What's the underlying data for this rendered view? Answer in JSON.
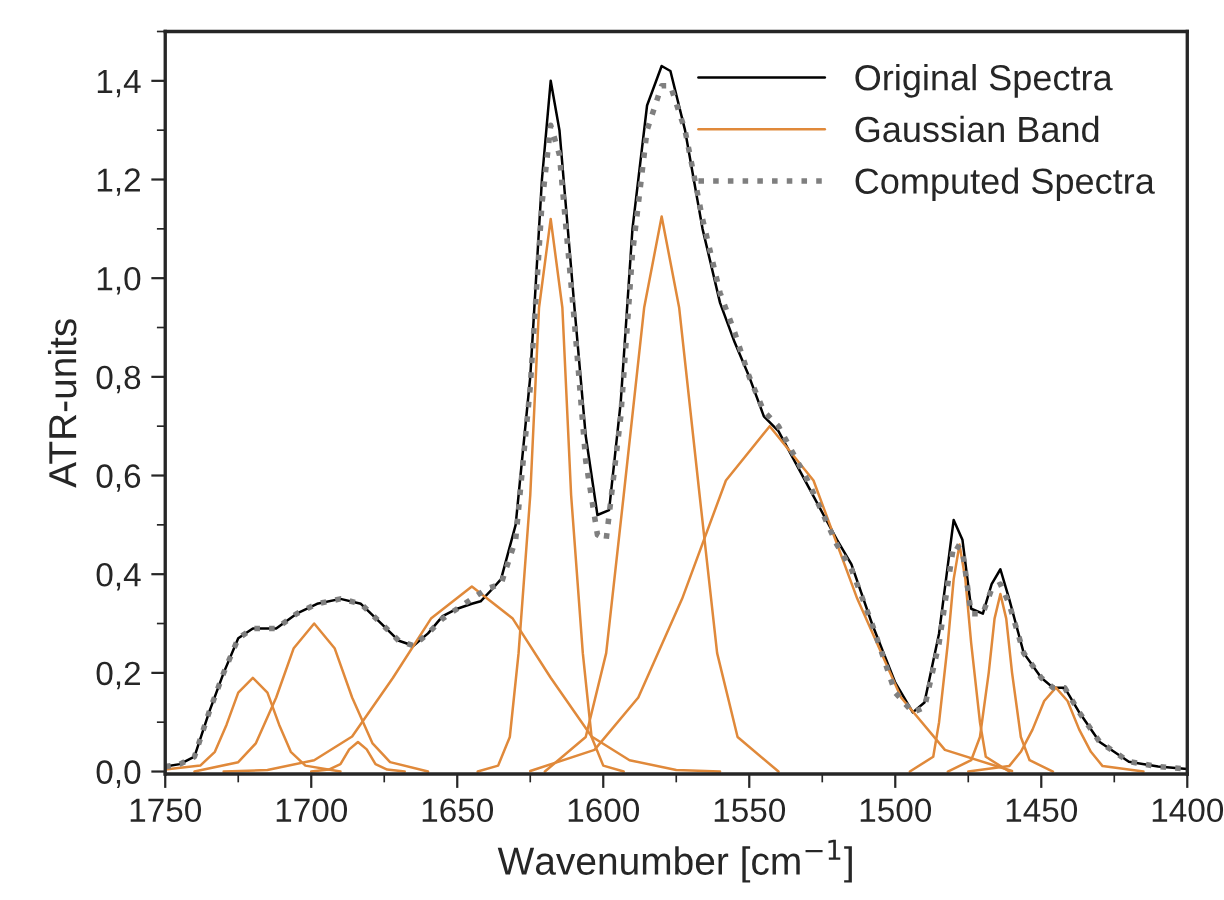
{
  "chart_data": {
    "type": "line",
    "xlabel": "Wavenumber [cm$^{−1}$]",
    "ylabel": "ATR-units",
    "xlim": [
      1750,
      1400
    ],
    "xticks": [
      1750,
      1700,
      1650,
      1600,
      1550,
      1500,
      1450,
      1400
    ],
    "ylim": [
      -0.005,
      1.5
    ],
    "yticks": [
      {
        "value": 0,
        "label": "0,0"
      },
      {
        "value": 0.2,
        "label": "0,2"
      },
      {
        "value": 0.4,
        "label": "0,4"
      },
      {
        "value": 0.6,
        "label": "0,6"
      },
      {
        "value": 0.8,
        "label": "0,8"
      },
      {
        "value": 1.0,
        "label": "1,0"
      },
      {
        "value": 1.2,
        "label": "1,2"
      },
      {
        "value": 1.4,
        "label": "1,4"
      }
    ],
    "grid": false,
    "legend": "top right",
    "series": [
      {
        "name": "Original Spectra",
        "color": "#000000",
        "line_style": "solid",
        "x": [
          1750,
          1745,
          1740,
          1735,
          1730,
          1725,
          1720,
          1712,
          1705,
          1698,
          1690,
          1683,
          1676,
          1670,
          1665,
          1660,
          1655,
          1650,
          1645,
          1642,
          1638,
          1635,
          1630,
          1625,
          1621,
          1618,
          1615,
          1610,
          1606,
          1602,
          1598,
          1594,
          1590,
          1585,
          1580,
          1577,
          1572,
          1566,
          1560,
          1555,
          1550,
          1545,
          1540,
          1530,
          1520,
          1515,
          1508,
          1500,
          1494,
          1490,
          1485,
          1480,
          1477,
          1474,
          1470,
          1467,
          1464,
          1461,
          1456,
          1450,
          1446,
          1442,
          1437,
          1430,
          1420,
          1410,
          1400
        ],
        "values": [
          0.01,
          0.015,
          0.03,
          0.12,
          0.2,
          0.27,
          0.29,
          0.29,
          0.32,
          0.34,
          0.35,
          0.34,
          0.3,
          0.265,
          0.255,
          0.28,
          0.315,
          0.33,
          0.34,
          0.345,
          0.37,
          0.39,
          0.5,
          0.8,
          1.2,
          1.4,
          1.3,
          0.95,
          0.68,
          0.52,
          0.53,
          0.75,
          1.1,
          1.35,
          1.43,
          1.42,
          1.3,
          1.1,
          0.95,
          0.87,
          0.8,
          0.72,
          0.69,
          0.58,
          0.47,
          0.42,
          0.3,
          0.18,
          0.12,
          0.14,
          0.28,
          0.51,
          0.47,
          0.33,
          0.32,
          0.38,
          0.41,
          0.35,
          0.24,
          0.19,
          0.17,
          0.17,
          0.12,
          0.06,
          0.02,
          0.01,
          0.005
        ]
      },
      {
        "name": "Gaussian Band",
        "color": "#e0893a",
        "line_style": "solid",
        "x": [
          1750,
          1738,
          1733,
          1729,
          1725,
          1720,
          1715,
          1711,
          1707,
          1702,
          1690
        ],
        "values": [
          0.004,
          0.012,
          0.04,
          0.095,
          0.16,
          0.19,
          0.16,
          0.095,
          0.04,
          0.012,
          0.0
        ]
      },
      {
        "color": "#e0893a",
        "line_style": "solid",
        "x": [
          1740,
          1725,
          1719,
          1712,
          1706,
          1699,
          1692,
          1686,
          1679,
          1673,
          1660
        ],
        "values": [
          0.0,
          0.019,
          0.057,
          0.15,
          0.25,
          0.3,
          0.25,
          0.15,
          0.057,
          0.019,
          0.0
        ]
      },
      {
        "color": "#e0893a",
        "line_style": "solid",
        "x": [
          1700,
          1694,
          1690,
          1687,
          1684,
          1681,
          1678,
          1674,
          1668
        ],
        "values": [
          0.0,
          0.004,
          0.015,
          0.045,
          0.06,
          0.045,
          0.015,
          0.004,
          0.0
        ]
      },
      {
        "color": "#e0893a",
        "line_style": "solid",
        "x": [
          1730,
          1715,
          1699,
          1686,
          1672,
          1659,
          1645,
          1631,
          1618,
          1604,
          1591,
          1575,
          1560
        ],
        "values": [
          0.0,
          0.003,
          0.023,
          0.071,
          0.19,
          0.31,
          0.375,
          0.31,
          0.19,
          0.071,
          0.023,
          0.003,
          0.0
        ]
      },
      {
        "color": "#e0893a",
        "line_style": "solid",
        "x": [
          1643,
          1636,
          1632,
          1629,
          1625,
          1622,
          1618,
          1614,
          1611,
          1607,
          1604,
          1600,
          1593
        ],
        "values": [
          0.0,
          0.012,
          0.07,
          0.24,
          0.56,
          0.94,
          1.12,
          0.94,
          0.56,
          0.24,
          0.07,
          0.012,
          0.0
        ]
      },
      {
        "color": "#e0893a",
        "line_style": "solid",
        "x": [
          1620,
          1606,
          1599,
          1593,
          1586,
          1580,
          1574,
          1567,
          1561,
          1554,
          1540
        ],
        "values": [
          0.0,
          0.07,
          0.24,
          0.56,
          0.94,
          1.125,
          0.94,
          0.56,
          0.24,
          0.07,
          0.0
        ]
      },
      {
        "color": "#e0893a",
        "line_style": "solid",
        "x": [
          1625,
          1603,
          1588,
          1573,
          1558,
          1543,
          1528,
          1513,
          1498,
          1483,
          1460
        ],
        "values": [
          0.001,
          0.044,
          0.15,
          0.35,
          0.59,
          0.7,
          0.59,
          0.35,
          0.15,
          0.044,
          0.001
        ]
      },
      {
        "color": "#e0893a",
        "line_style": "solid",
        "x": [
          1495,
          1487,
          1485,
          1482,
          1480,
          1478,
          1476,
          1474,
          1471,
          1469,
          1461
        ],
        "values": [
          0.0,
          0.03,
          0.1,
          0.26,
          0.39,
          0.46,
          0.39,
          0.26,
          0.1,
          0.03,
          0.0
        ]
      },
      {
        "color": "#e0893a",
        "line_style": "solid",
        "x": [
          1482,
          1474,
          1471,
          1468,
          1466,
          1464,
          1462,
          1460,
          1457,
          1454,
          1446
        ],
        "values": [
          0.0,
          0.023,
          0.07,
          0.2,
          0.31,
          0.36,
          0.31,
          0.2,
          0.07,
          0.023,
          0.0
        ]
      },
      {
        "color": "#e0893a",
        "line_style": "solid",
        "x": [
          1475,
          1461,
          1457,
          1453,
          1449,
          1445,
          1441,
          1437,
          1433,
          1429,
          1415
        ],
        "values": [
          0.0,
          0.011,
          0.04,
          0.085,
          0.143,
          0.17,
          0.143,
          0.085,
          0.04,
          0.011,
          0.0
        ]
      },
      {
        "name": "Computed Spectra",
        "color": "#7f7f7f",
        "line_style": "dotted",
        "x": [
          1750,
          1745,
          1740,
          1735,
          1730,
          1725,
          1720,
          1712,
          1705,
          1698,
          1690,
          1683,
          1676,
          1670,
          1665,
          1660,
          1655,
          1650,
          1645,
          1640,
          1635,
          1630,
          1625,
          1621,
          1618,
          1615,
          1610,
          1606,
          1602,
          1599,
          1594,
          1590,
          1585,
          1580,
          1577,
          1572,
          1566,
          1560,
          1555,
          1550,
          1545,
          1540,
          1530,
          1520,
          1515,
          1508,
          1500,
          1494,
          1490,
          1485,
          1480,
          1477,
          1474,
          1470,
          1467,
          1464,
          1461,
          1456,
          1450,
          1446,
          1442,
          1437,
          1430,
          1420,
          1410,
          1400
        ],
        "values": [
          0.01,
          0.015,
          0.03,
          0.12,
          0.2,
          0.27,
          0.29,
          0.29,
          0.32,
          0.34,
          0.35,
          0.34,
          0.3,
          0.265,
          0.255,
          0.28,
          0.31,
          0.33,
          0.35,
          0.37,
          0.38,
          0.47,
          0.78,
          1.15,
          1.31,
          1.25,
          0.92,
          0.63,
          0.48,
          0.47,
          0.72,
          1.05,
          1.3,
          1.39,
          1.39,
          1.3,
          1.12,
          0.97,
          0.89,
          0.8,
          0.73,
          0.7,
          0.59,
          0.46,
          0.41,
          0.3,
          0.16,
          0.12,
          0.13,
          0.26,
          0.46,
          0.45,
          0.32,
          0.32,
          0.37,
          0.38,
          0.34,
          0.24,
          0.19,
          0.17,
          0.17,
          0.12,
          0.06,
          0.02,
          0.01,
          0.005
        ]
      }
    ]
  }
}
